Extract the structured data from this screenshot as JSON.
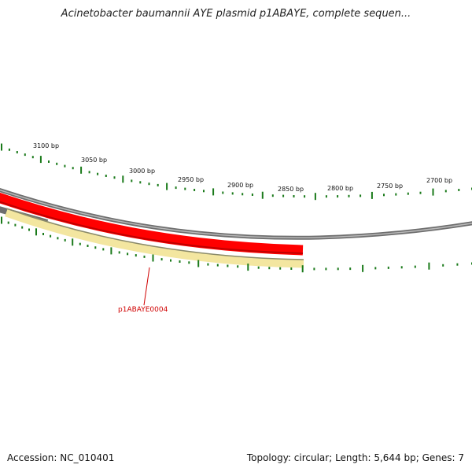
{
  "title": "Acinetobacter baumannii AYE plasmid p1ABAYE, complete sequen...",
  "accession": "Accession: NC_010401",
  "summary": "Topology: circular; Length: 5,644 bp; Genes: 7",
  "ruler_labels": [
    "3100 bp",
    "3050 bp",
    "3000 bp",
    "2950 bp",
    "2900 bp",
    "2850 bp",
    "2800 bp",
    "2750 bp",
    "2700 bp"
  ],
  "genes": [
    {
      "label": "p1ABAYE0004",
      "color": "#d00000"
    }
  ],
  "colors": {
    "backbone": "#808080",
    "gene_red": "#ff0000",
    "gene_yellow": "#f3e6a0",
    "tick_green": "#1a7a1a"
  }
}
